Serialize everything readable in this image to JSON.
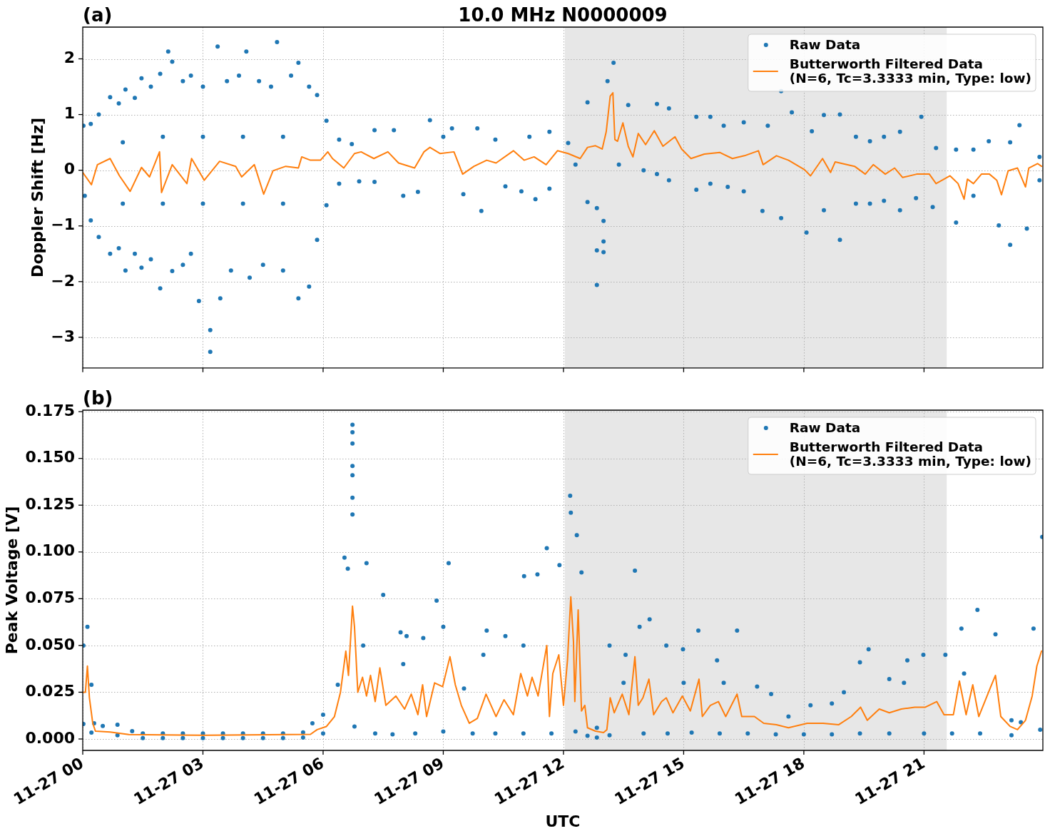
{
  "chart_data": [
    {
      "type": "scatter",
      "title": "10.0 MHz N0000009",
      "annotations": [
        "(a)"
      ],
      "ylabel": "Doppler Shift [Hz]",
      "tick_labels": "y",
      "grid": true,
      "legend": "top right",
      "xlim": [
        "--11-27T00:00",
        "--11-27T23:58"
      ],
      "xticks": [
        {
          "value": "--11-27T00:00",
          "label": null
        },
        {
          "value": "--11-27T03:00",
          "label": null
        },
        {
          "value": "--11-27T06:00",
          "label": null
        },
        {
          "value": "--11-27T09:00",
          "label": null
        },
        {
          "value": "--11-27T12:00",
          "label": null
        },
        {
          "value": "--11-27T15:00",
          "label": null
        },
        {
          "value": "--11-27T18:00",
          "label": null
        },
        {
          "value": "--11-27T21:00",
          "label": null
        }
      ],
      "ylim": [
        -3.55,
        2.57
      ],
      "yticks": [
        {
          "value": -3,
          "label": "−3"
        },
        {
          "value": -2,
          "label": "−2"
        },
        {
          "value": -1,
          "label": "−1"
        },
        0,
        1,
        2
      ],
      "bands": [
        {
          "axis": "x",
          "from": "--11-27T12:02",
          "to": "--11-27T21:34",
          "color": "#e7e7e7"
        }
      ],
      "series": [
        {
          "name": "Raw Data",
          "marker": "circle",
          "color": "#1f77b4",
          "x": [
            "--11-27T00:01",
            "--11-27T00:03",
            "--11-27T00:12",
            "--11-27T00:12",
            "--11-27T00:24",
            "--11-27T00:24",
            "--11-27T00:41",
            "--11-27T00:41",
            "--11-27T00:54",
            "--11-27T00:54",
            "--11-27T01:00",
            "--11-27T01:00",
            "--11-27T01:04",
            "--11-27T01:04",
            "--11-27T01:18",
            "--11-27T01:18",
            "--11-27T01:28",
            "--11-27T01:28",
            "--11-27T01:42",
            "--11-27T01:42",
            "--11-27T01:56",
            "--11-27T01:56",
            "--11-27T02:00",
            "--11-27T02:00",
            "--11-27T02:08",
            "--11-27T02:14",
            "--11-27T02:14",
            "--11-27T02:30",
            "--11-27T02:30",
            "--11-27T02:42",
            "--11-27T02:42",
            "--11-27T02:54",
            "--11-27T03:00",
            "--11-27T03:00",
            "--11-27T03:00",
            "--11-27T03:11",
            "--11-27T03:11",
            "--11-27T03:22",
            "--11-27T03:26",
            "--11-27T03:36",
            "--11-27T03:42",
            "--11-27T03:54",
            "--11-27T04:00",
            "--11-27T04:00",
            "--11-27T04:05",
            "--11-27T04:10",
            "--11-27T04:24",
            "--11-27T04:30",
            "--11-27T04:42",
            "--11-27T04:51",
            "--11-27T05:00",
            "--11-27T05:00",
            "--11-27T05:00",
            "--11-27T05:12",
            "--11-27T05:23",
            "--11-27T05:23",
            "--11-27T05:39",
            "--11-27T05:39",
            "--11-27T05:51",
            "--11-27T05:51",
            "--11-27T06:05",
            "--11-27T06:05",
            "--11-27T06:24",
            "--11-27T06:24",
            "--11-27T06:43",
            "--11-27T06:54",
            "--11-27T07:17",
            "--11-27T07:17",
            "--11-27T07:46",
            "--11-27T08:00",
            "--11-27T08:22",
            "--11-27T08:40",
            "--11-27T09:00",
            "--11-27T09:13",
            "--11-27T09:30",
            "--11-27T09:51",
            "--11-27T09:57",
            "--11-27T10:18",
            "--11-27T10:33",
            "--11-27T10:57",
            "--11-27T11:09",
            "--11-27T11:18",
            "--11-27T11:39",
            "--11-27T11:39",
            "--11-27T12:07",
            "--11-27T12:18",
            "--11-27T12:36",
            "--11-27T12:36",
            "--11-27T12:50",
            "--11-27T12:50",
            "--11-27T12:50",
            "--11-27T13:00",
            "--11-27T13:00",
            "--11-27T13:00",
            "--11-27T13:06",
            "--11-27T13:15",
            "--11-27T13:23",
            "--11-27T13:37",
            "--11-27T14:00",
            "--11-27T14:20",
            "--11-27T14:20",
            "--11-27T14:38",
            "--11-27T14:38",
            "--11-27T15:19",
            "--11-27T15:19",
            "--11-27T15:40",
            "--11-27T15:40",
            "--11-27T16:00",
            "--11-27T16:06",
            "--11-27T16:30",
            "--11-27T16:30",
            "--11-27T16:58",
            "--11-27T17:06",
            "--11-27T17:26",
            "--11-27T17:26",
            "--11-27T17:42",
            "--11-27T18:04",
            "--11-27T18:12",
            "--11-27T18:30",
            "--11-27T18:30",
            "--11-27T18:54",
            "--11-27T18:54",
            "--11-27T19:18",
            "--11-27T19:18",
            "--11-27T19:39",
            "--11-27T19:39",
            "--11-27T20:00",
            "--11-27T20:00",
            "--11-27T20:24",
            "--11-27T20:24",
            "--11-27T20:48",
            "--11-27T20:56",
            "--11-27T21:13",
            "--11-27T21:18",
            "--11-27T21:48",
            "--11-27T21:48",
            "--11-27T22:14",
            "--11-27T22:14",
            "--11-27T22:37",
            "--11-27T22:52",
            "--11-27T23:09",
            "--11-27T23:09",
            "--11-27T23:23",
            "--11-27T23:34",
            "--11-27T23:53",
            "--11-27T23:53"
          ],
          "values": [
            0.8,
            -0.46,
            0.83,
            -0.9,
            1.0,
            -1.2,
            1.31,
            -1.5,
            1.2,
            -1.4,
            0.5,
            -0.6,
            1.45,
            -1.8,
            1.3,
            -1.5,
            1.65,
            -1.75,
            1.5,
            -1.6,
            1.73,
            -2.12,
            0.6,
            -0.6,
            2.13,
            1.95,
            -1.81,
            1.6,
            -1.7,
            1.7,
            -1.5,
            -2.35,
            1.5,
            0.6,
            -0.6,
            -2.87,
            -3.26,
            2.22,
            -2.3,
            1.6,
            -1.8,
            1.7,
            0.6,
            -0.6,
            2.13,
            -1.93,
            1.6,
            -1.7,
            1.5,
            2.3,
            -1.8,
            0.6,
            -0.6,
            1.7,
            1.93,
            -2.3,
            -2.09,
            1.5,
            1.35,
            -1.25,
            0.89,
            -0.63,
            0.55,
            -0.24,
            0.47,
            -0.2,
            0.72,
            -0.21,
            0.72,
            -0.46,
            -0.39,
            0.9,
            0.6,
            0.75,
            -0.43,
            0.75,
            -0.73,
            0.55,
            -0.29,
            -0.38,
            0.6,
            -0.52,
            0.69,
            -0.33,
            0.49,
            0.1,
            1.22,
            -0.57,
            -2.06,
            -1.44,
            -0.68,
            -1.28,
            -1.47,
            -0.91,
            1.6,
            1.93,
            0.1,
            1.17,
            0.0,
            1.19,
            -0.07,
            1.11,
            -0.18,
            0.96,
            -0.35,
            0.96,
            -0.24,
            0.8,
            -0.3,
            0.86,
            -0.38,
            -0.73,
            0.8,
            1.42,
            -0.86,
            1.04,
            -1.12,
            0.7,
            0.99,
            -0.72,
            1.0,
            -1.25,
            0.6,
            -0.6,
            0.52,
            -0.6,
            0.6,
            -0.55,
            0.69,
            -0.72,
            -0.5,
            0.96,
            -0.66,
            0.4,
            0.37,
            -0.94,
            0.37,
            -0.46,
            0.52,
            -0.99,
            -1.34,
            0.5,
            0.81,
            -1.05,
            0.24,
            -0.18
          ]
        },
        {
          "name": "Butterworth Filtered Data\n(N=6, Tc=3.3333 min, Type: low)",
          "type": "line",
          "color": "#ff7f0e",
          "x": [
            "--11-27T00:00",
            "--11-27T00:13",
            "--11-27T00:22",
            "--11-27T00:41",
            "--11-27T00:55",
            "--11-27T01:11",
            "--11-27T01:28",
            "--11-27T01:40",
            "--11-27T01:55",
            "--11-27T01:58",
            "--11-27T02:14",
            "--11-27T02:36",
            "--11-27T02:43",
            "--11-27T03:02",
            "--11-27T03:25",
            "--11-27T03:49",
            "--11-27T03:58",
            "--11-27T04:17",
            "--11-27T04:31",
            "--11-27T04:45",
            "--11-27T05:04",
            "--11-27T05:23",
            "--11-27T05:28",
            "--11-27T05:41",
            "--11-27T05:56",
            "--11-27T06:07",
            "--11-27T06:14",
            "--11-27T06:31",
            "--11-27T06:47",
            "--11-27T06:57",
            "--11-27T07:16",
            "--11-27T07:37",
            "--11-27T07:53",
            "--11-27T08:17",
            "--11-27T08:31",
            "--11-27T08:40",
            "--11-27T08:55",
            "--11-27T09:16",
            "--11-27T09:29",
            "--11-27T09:46",
            "--11-27T10:05",
            "--11-27T10:19",
            "--11-27T10:45",
            "--11-27T11:01",
            "--11-27T11:16",
            "--11-27T11:34",
            "--11-27T11:51",
            "--11-27T12:07",
            "--11-27T12:25",
            "--11-27T12:36",
            "--11-27T12:48",
            "--11-27T12:58",
            "--11-27T13:04",
            "--11-27T13:10",
            "--11-27T13:14",
            "--11-27T13:17",
            "--11-27T13:21",
            "--11-27T13:29",
            "--11-27T13:37",
            "--11-27T13:44",
            "--11-27T13:52",
            "--11-27T14:03",
            "--11-27T14:16",
            "--11-27T14:29",
            "--11-27T14:47",
            "--11-27T14:57",
            "--11-27T15:11",
            "--11-27T15:31",
            "--11-27T15:54",
            "--11-27T16:13",
            "--11-27T16:31",
            "--11-27T16:52",
            "--11-27T16:59",
            "--11-27T17:19",
            "--11-27T17:37",
            "--11-27T18:01",
            "--11-27T18:10",
            "--11-27T18:28",
            "--11-27T18:40",
            "--11-27T18:47",
            "--11-27T19:16",
            "--11-27T19:32",
            "--11-27T19:44",
            "--11-27T20:02",
            "--11-27T20:16",
            "--11-27T20:28",
            "--11-27T20:49",
            "--11-27T21:08",
            "--11-27T21:18",
            "--11-27T21:39",
            "--11-27T21:51",
            "--11-27T22:00",
            "--11-27T22:05",
            "--11-27T22:14",
            "--11-27T22:26",
            "--11-27T22:38",
            "--11-27T22:49",
            "--11-27T22:56",
            "--11-27T23:06",
            "--11-27T23:20",
            "--11-27T23:32",
            "--11-27T23:37",
            "--11-27T23:50",
            "--11-27T23:56"
          ],
          "values": [
            -0.04,
            -0.26,
            0.1,
            0.21,
            -0.1,
            -0.38,
            0.05,
            -0.12,
            0.33,
            -0.4,
            0.1,
            -0.24,
            0.21,
            -0.18,
            0.16,
            0.07,
            -0.12,
            0.1,
            -0.43,
            -0.01,
            0.07,
            0.04,
            0.24,
            0.18,
            0.18,
            0.33,
            0.21,
            0.04,
            0.3,
            0.33,
            0.21,
            0.33,
            0.13,
            0.04,
            0.33,
            0.41,
            0.3,
            0.33,
            -0.07,
            0.07,
            0.18,
            0.13,
            0.35,
            0.18,
            0.24,
            0.1,
            0.35,
            0.3,
            0.21,
            0.41,
            0.44,
            0.38,
            0.69,
            1.33,
            1.39,
            0.55,
            0.52,
            0.85,
            0.43,
            0.24,
            0.66,
            0.46,
            0.71,
            0.43,
            0.6,
            0.38,
            0.21,
            0.29,
            0.32,
            0.21,
            0.26,
            0.35,
            0.1,
            0.26,
            0.18,
            0.01,
            -0.1,
            0.21,
            -0.04,
            0.15,
            0.07,
            -0.07,
            0.1,
            -0.07,
            0.04,
            -0.13,
            -0.07,
            -0.07,
            -0.24,
            -0.1,
            -0.24,
            -0.52,
            -0.16,
            -0.24,
            -0.07,
            -0.07,
            -0.18,
            -0.44,
            -0.01,
            0.04,
            -0.3,
            0.04,
            0.12,
            0.07
          ]
        }
      ]
    },
    {
      "type": "scatter",
      "annotations": [
        "(b)"
      ],
      "xlabel": "UTC",
      "ylabel": "Peak Voltage [V]",
      "grid": true,
      "legend": "top right",
      "xlim": [
        "--11-27T00:00",
        "--11-27T23:58"
      ],
      "xticks": [
        {
          "value": "--11-27T00:00",
          "label": "11-27 00"
        },
        {
          "value": "--11-27T03:00",
          "label": "11-27 03"
        },
        {
          "value": "--11-27T06:00",
          "label": "11-27 06"
        },
        {
          "value": "--11-27T09:00",
          "label": "11-27 09"
        },
        {
          "value": "--11-27T12:00",
          "label": "11-27 12"
        },
        {
          "value": "--11-27T15:00",
          "label": "11-27 15"
        },
        {
          "value": "--11-27T18:00",
          "label": "11-27 18"
        },
        {
          "value": "--11-27T21:00",
          "label": "11-27 21"
        }
      ],
      "ylim": [
        -0.0061,
        0.1758
      ],
      "yticks": [
        {
          "value": 0,
          "label": "0.000"
        },
        {
          "value": 0.025,
          "label": "0.025"
        },
        {
          "value": 0.05,
          "label": "0.050"
        },
        {
          "value": 0.075,
          "label": "0.075"
        },
        {
          "value": 0.1,
          "label": "0.100"
        },
        {
          "value": 0.125,
          "label": "0.125"
        },
        {
          "value": 0.15,
          "label": "0.150"
        },
        {
          "value": 0.175,
          "label": "0.175"
        }
      ],
      "bands": [
        {
          "axis": "x",
          "from": "--11-27T12:02",
          "to": "--11-27T21:34",
          "color": "#e7e7e7"
        }
      ],
      "series": [
        {
          "name": "Raw Data",
          "marker": "circle",
          "color": "#1f77b4",
          "x": [
            "--11-27T00:01",
            "--11-27T00:01",
            "--11-27T00:07",
            "--11-27T00:13",
            "--11-27T00:13",
            "--11-27T00:17",
            "--11-27T00:30",
            "--11-27T00:52",
            "--11-27T00:52",
            "--11-27T01:14",
            "--11-27T01:30",
            "--11-27T01:30",
            "--11-27T02:00",
            "--11-27T02:00",
            "--11-27T02:30",
            "--11-27T02:30",
            "--11-27T03:00",
            "--11-27T03:00",
            "--11-27T03:30",
            "--11-27T03:30",
            "--11-27T04:00",
            "--11-27T04:00",
            "--11-27T04:30",
            "--11-27T04:30",
            "--11-27T05:00",
            "--11-27T05:00",
            "--11-27T05:30",
            "--11-27T05:30",
            "--11-27T05:44",
            "--11-27T06:00",
            "--11-27T06:00",
            "--11-27T06:22",
            "--11-27T06:32",
            "--11-27T06:37",
            "--11-27T06:44",
            "--11-27T06:44",
            "--11-27T06:44",
            "--11-27T06:44",
            "--11-27T06:44",
            "--11-27T06:44",
            "--11-27T06:44",
            "--11-27T06:47",
            "--11-27T07:00",
            "--11-27T07:05",
            "--11-27T07:18",
            "--11-27T07:30",
            "--11-27T07:44",
            "--11-27T07:56",
            "--11-27T08:00",
            "--11-27T08:05",
            "--11-27T08:18",
            "--11-27T08:30",
            "--11-27T08:50",
            "--11-27T09:00",
            "--11-27T09:00",
            "--11-27T09:08",
            "--11-27T09:31",
            "--11-27T09:44",
            "--11-27T10:00",
            "--11-27T10:05",
            "--11-27T10:18",
            "--11-27T10:33",
            "--11-27T11:00",
            "--11-27T11:00",
            "--11-27T11:01",
            "--11-27T11:21",
            "--11-27T11:35",
            "--11-27T11:42",
            "--11-27T11:54",
            "--11-27T12:10",
            "--11-27T12:11",
            "--11-27T12:18",
            "--11-27T12:20",
            "--11-27T12:27",
            "--11-27T12:36",
            "--11-27T12:50",
            "--11-27T12:50",
            "--11-27T13:09",
            "--11-27T13:09",
            "--11-27T13:30",
            "--11-27T13:33",
            "--11-27T13:47",
            "--11-27T13:54",
            "--11-27T14:00",
            "--11-27T14:09",
            "--11-27T14:34",
            "--11-27T14:36",
            "--11-27T14:59",
            "--11-27T15:00",
            "--11-27T15:12",
            "--11-27T15:22",
            "--11-27T15:50",
            "--11-27T15:54",
            "--11-27T16:00",
            "--11-27T16:20",
            "--11-27T16:36",
            "--11-27T16:50",
            "--11-27T17:11",
            "--11-27T17:18",
            "--11-27T17:37",
            "--11-27T18:00",
            "--11-27T18:10",
            "--11-27T18:42",
            "--11-27T18:42",
            "--11-27T19:00",
            "--11-27T19:24",
            "--11-27T19:24",
            "--11-27T19:37",
            "--11-27T20:08",
            "--11-27T20:08",
            "--11-27T20:30",
            "--11-27T20:35",
            "--11-27T20:59",
            "--11-27T21:00",
            "--11-27T21:32",
            "--11-27T21:42",
            "--11-27T21:56",
            "--11-27T22:00",
            "--11-27T22:20",
            "--11-27T22:24",
            "--11-27T22:47",
            "--11-27T23:11",
            "--11-27T23:11",
            "--11-27T23:25",
            "--11-27T23:44",
            "--11-27T23:54",
            "--11-27T23:57"
          ],
          "values": [
            0.05,
            0.008,
            0.06,
            0.029,
            0.0034,
            0.0084,
            0.007,
            0.0076,
            0.002,
            0.0042,
            0.003,
            0.0005,
            0.003,
            0.0005,
            0.003,
            0.0005,
            0.003,
            0.0005,
            0.003,
            0.0005,
            0.003,
            0.0005,
            0.003,
            0.0005,
            0.003,
            0.0005,
            0.0035,
            0.0008,
            0.0084,
            0.013,
            0.003,
            0.029,
            0.097,
            0.091,
            0.168,
            0.164,
            0.158,
            0.146,
            0.141,
            0.129,
            0.12,
            0.0067,
            0.05,
            0.094,
            0.003,
            0.077,
            0.0025,
            0.057,
            0.04,
            0.055,
            0.003,
            0.054,
            0.074,
            0.06,
            0.004,
            0.094,
            0.027,
            0.003,
            0.045,
            0.058,
            0.003,
            0.055,
            0.05,
            0.003,
            0.087,
            0.088,
            0.102,
            0.003,
            0.093,
            0.13,
            0.121,
            0.004,
            0.109,
            0.089,
            0.0017,
            0.006,
            0.0008,
            0.05,
            0.002,
            0.03,
            0.045,
            0.09,
            0.06,
            0.003,
            0.064,
            0.05,
            0.003,
            0.048,
            0.03,
            0.0034,
            0.058,
            0.042,
            0.003,
            0.03,
            0.058,
            0.003,
            0.028,
            0.024,
            0.0025,
            0.012,
            0.0025,
            0.018,
            0.019,
            0.0025,
            0.025,
            0.041,
            0.003,
            0.048,
            0.032,
            0.003,
            0.03,
            0.042,
            0.045,
            0.003,
            0.045,
            0.003,
            0.059,
            0.035,
            0.069,
            0.003,
            0.056,
            0.01,
            0.002,
            0.009,
            0.059,
            0.005,
            0.108
          ]
        },
        {
          "name": "Butterworth Filtered Data\n(N=6, Tc=3.3333 min, Type: low)",
          "type": "line",
          "color": "#ff7f0e",
          "x": [
            "--11-27T00:00",
            "--11-27T00:04",
            "--11-27T00:07",
            "--11-27T00:10",
            "--11-27T00:15",
            "--11-27T00:19",
            "--11-27T00:41",
            "--11-27T01:09",
            "--11-27T03:02",
            "--11-27T05:41",
            "--11-27T05:51",
            "--11-27T06:05",
            "--11-27T06:17",
            "--11-27T06:26",
            "--11-27T06:34",
            "--11-27T06:38",
            "--11-27T06:44",
            "--11-27T06:47",
            "--11-27T06:52",
            "--11-27T06:59",
            "--11-27T07:05",
            "--11-27T07:11",
            "--11-27T07:18",
            "--11-27T07:25",
            "--11-27T07:34",
            "--11-27T07:49",
            "--11-27T08:02",
            "--11-27T08:12",
            "--11-27T08:22",
            "--11-27T08:29",
            "--11-27T08:35",
            "--11-27T08:47",
            "--11-27T08:59",
            "--11-27T09:10",
            "--11-27T09:18",
            "--11-27T09:27",
            "--11-27T09:39",
            "--11-27T09:51",
            "--11-27T10:04",
            "--11-27T10:19",
            "--11-27T10:31",
            "--11-27T10:45",
            "--11-27T10:56",
            "--11-27T11:06",
            "--11-27T11:13",
            "--11-27T11:22",
            "--11-27T11:35",
            "--11-27T11:39",
            "--11-27T11:44",
            "--11-27T11:53",
            "--11-27T12:00",
            "--11-27T12:06",
            "--11-27T12:11",
            "--11-27T12:15",
            "--11-27T12:17",
            "--11-27T12:22",
            "--11-27T12:27",
            "--11-27T12:32",
            "--11-27T12:36",
            "--11-27T12:48",
            "--11-27T13:00",
            "--11-27T13:05",
            "--11-27T13:10",
            "--11-27T13:16",
            "--11-27T13:28",
            "--11-27T13:38",
            "--11-27T13:47",
            "--11-27T13:52",
            "--11-27T13:59",
            "--11-27T14:08",
            "--11-27T14:15",
            "--11-27T14:27",
            "--11-27T14:34",
            "--11-27T14:44",
            "--11-27T14:58",
            "--11-27T15:10",
            "--11-27T15:23",
            "--11-27T15:28",
            "--11-27T15:40",
            "--11-27T15:52",
            "--11-27T16:03",
            "--11-27T16:20",
            "--11-27T16:27",
            "--11-27T16:46",
            "--11-27T17:00",
            "--11-27T17:19",
            "--11-27T17:37",
            "--11-27T18:05",
            "--11-27T18:29",
            "--11-27T18:52",
            "--11-27T19:11",
            "--11-27T19:25",
            "--11-27T19:35",
            "--11-27T19:53",
            "--11-27T20:08",
            "--11-27T20:26",
            "--11-27T20:46",
            "--11-27T21:02",
            "--11-27T21:19",
            "--11-27T21:30",
            "--11-27T21:44",
            "--11-27T21:53",
            "--11-27T22:03",
            "--11-27T22:13",
            "--11-27T22:22",
            "--11-27T22:40",
            "--11-27T22:47",
            "--11-27T22:55",
            "--11-27T23:09",
            "--11-27T23:20",
            "--11-27T23:32",
            "--11-27T23:42",
            "--11-27T23:49",
            "--11-27T23:56"
          ],
          "values": [
            0.025,
            0.025,
            0.039,
            0.022,
            0.0084,
            0.0042,
            0.0037,
            0.0024,
            0.002,
            0.0025,
            0.005,
            0.0067,
            0.012,
            0.025,
            0.047,
            0.034,
            0.071,
            0.06,
            0.025,
            0.033,
            0.023,
            0.034,
            0.02,
            0.038,
            0.018,
            0.023,
            0.016,
            0.024,
            0.013,
            0.029,
            0.012,
            0.03,
            0.028,
            0.044,
            0.029,
            0.018,
            0.0084,
            0.011,
            0.024,
            0.012,
            0.021,
            0.013,
            0.035,
            0.023,
            0.033,
            0.023,
            0.05,
            0.012,
            0.035,
            0.045,
            0.018,
            0.042,
            0.076,
            0.052,
            0.02,
            0.069,
            0.015,
            0.018,
            0.006,
            0.0042,
            0.0034,
            0.005,
            0.022,
            0.014,
            0.024,
            0.013,
            0.044,
            0.018,
            0.022,
            0.032,
            0.013,
            0.02,
            0.022,
            0.014,
            0.023,
            0.015,
            0.032,
            0.012,
            0.018,
            0.02,
            0.012,
            0.024,
            0.012,
            0.012,
            0.0084,
            0.0076,
            0.006,
            0.0084,
            0.0084,
            0.0076,
            0.012,
            0.017,
            0.01,
            0.016,
            0.014,
            0.016,
            0.017,
            0.017,
            0.02,
            0.013,
            0.013,
            0.031,
            0.013,
            0.029,
            0.012,
            0.028,
            0.034,
            0.012,
            0.0067,
            0.005,
            0.01,
            0.023,
            0.039,
            0.047
          ]
        }
      ]
    }
  ]
}
